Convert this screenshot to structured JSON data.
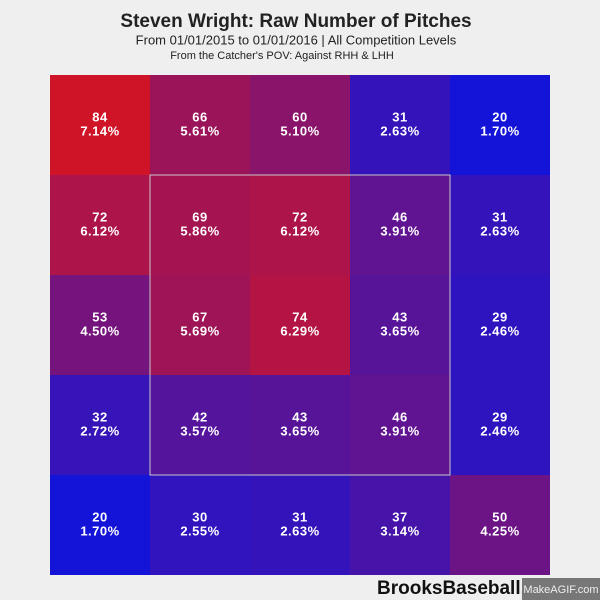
{
  "chart_data": {
    "type": "heatmap",
    "title": "Steven Wright: Raw Number of Pitches",
    "subtitle": "From 01/01/2015 to 01/01/2016 | All Competition Levels",
    "note": "From the Catcher's POV:  Against RHH & LHH",
    "watermark": "BrooksBaseball.net",
    "credit": "MakeAGIF.com",
    "color_low": "#1414d8",
    "color_high": "#d01428",
    "values": [
      [
        84,
        66,
        60,
        31,
        20
      ],
      [
        72,
        69,
        72,
        46,
        31
      ],
      [
        53,
        67,
        74,
        43,
        29
      ],
      [
        32,
        42,
        43,
        46,
        29
      ],
      [
        20,
        30,
        31,
        37,
        50
      ]
    ],
    "percents": [
      [
        7.14,
        5.61,
        5.1,
        2.63,
        1.7
      ],
      [
        6.12,
        5.86,
        6.12,
        3.91,
        2.63
      ],
      [
        4.5,
        5.69,
        6.29,
        3.65,
        2.46
      ],
      [
        2.72,
        3.57,
        3.65,
        3.91,
        2.46
      ],
      [
        1.7,
        2.55,
        2.63,
        3.14,
        4.25
      ]
    ],
    "percent_labels": [
      [
        "7.14%",
        "5.61%",
        "5.10%",
        "2.63%",
        "1.70%"
      ],
      [
        "6.12%",
        "5.86%",
        "6.12%",
        "3.91%",
        "2.63%"
      ],
      [
        "4.50%",
        "5.69%",
        "6.29%",
        "3.65%",
        "2.46%"
      ],
      [
        "2.72%",
        "3.57%",
        "3.65%",
        "3.91%",
        "2.46%"
      ],
      [
        "1.70%",
        "2.55%",
        "2.63%",
        "3.14%",
        "4.25%"
      ]
    ]
  }
}
